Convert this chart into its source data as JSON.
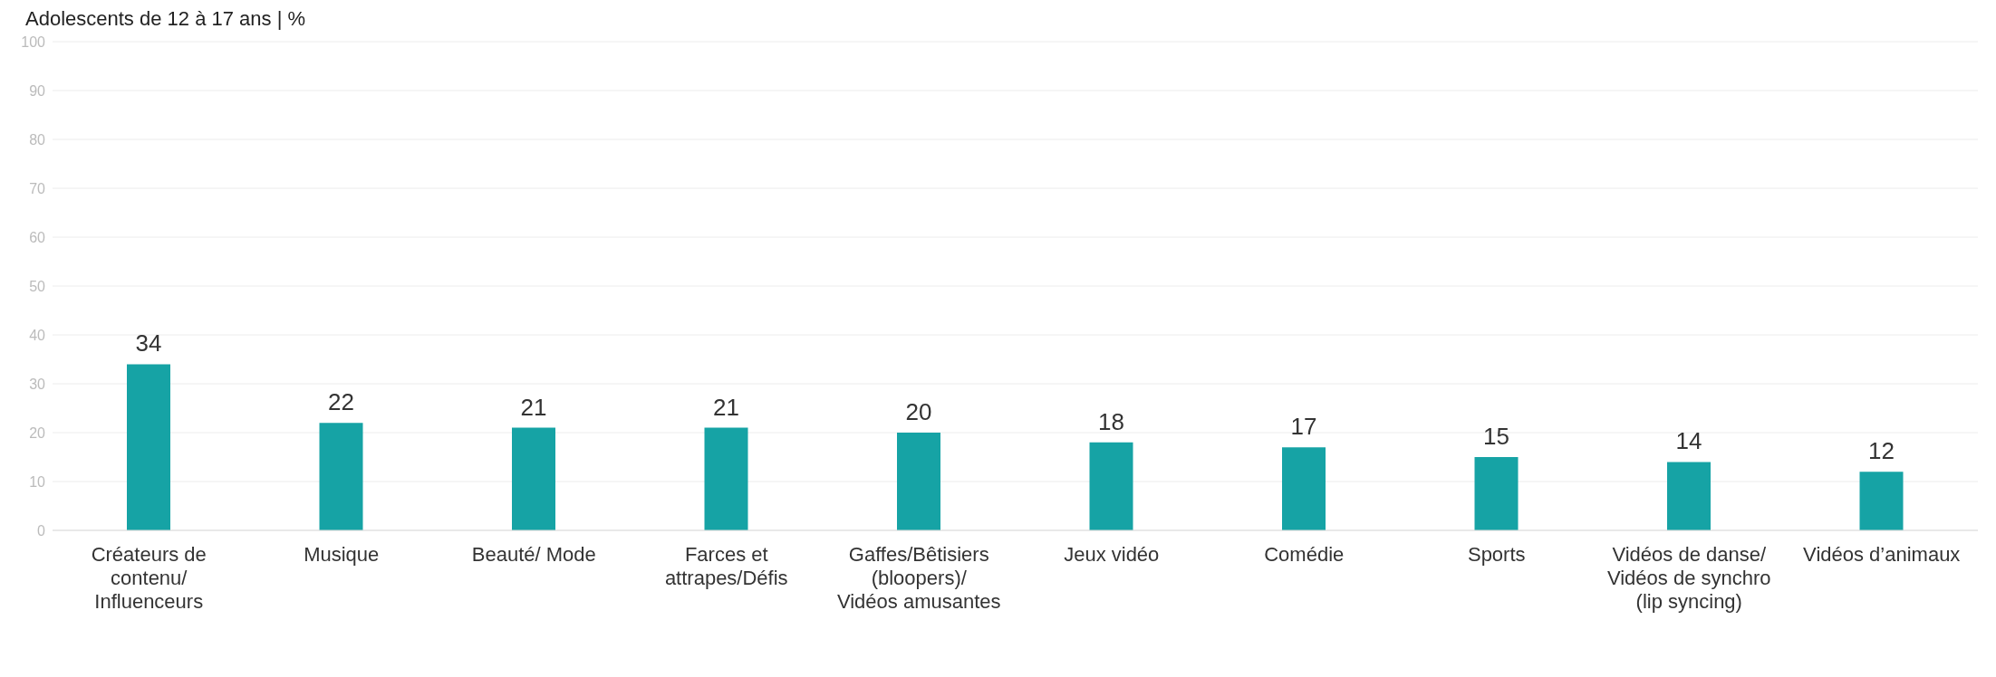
{
  "chart_data": {
    "type": "bar",
    "title": "Adolescents de 12 à 17 ans | %",
    "categories": [
      "Créateurs de contenu/ Influenceurs",
      "Musique",
      "Beauté/ Mode",
      "Farces et attrapes/Défis",
      "Gaffes/Bêtisiers (bloopers)/ Vidéos amusantes",
      "Jeux vidéo",
      "Comédie",
      "Sports",
      "Vidéos de danse/ Vidéos de synchro (lip syncing)",
      "Vidéos d’animaux"
    ],
    "values": [
      34,
      22,
      21,
      21,
      20,
      18,
      17,
      15,
      14,
      12
    ],
    "color": "#16a3a5",
    "ylim": [
      0,
      100
    ],
    "yticks": [
      0,
      10,
      20,
      30,
      40,
      50,
      60,
      70,
      80,
      90,
      100
    ],
    "grid": "y",
    "data_labels": true,
    "legend": false
  }
}
